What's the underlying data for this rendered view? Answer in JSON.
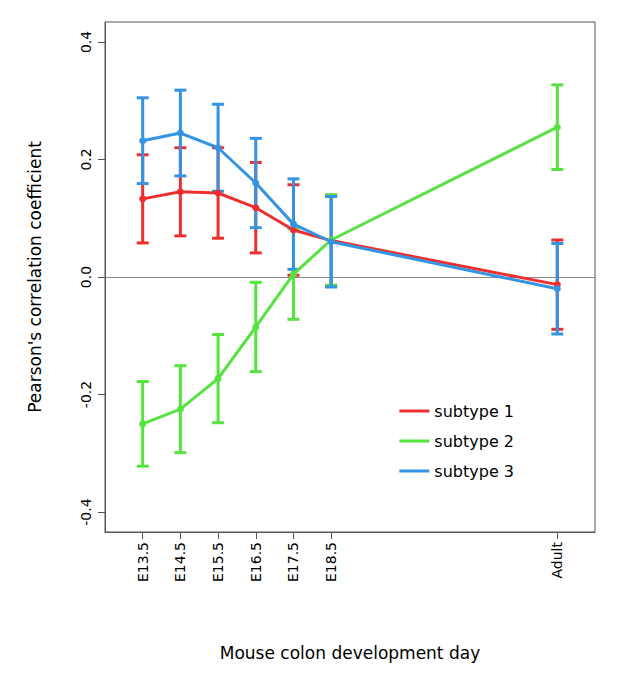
{
  "chart_data": {
    "type": "line",
    "x_label": "Mouse colon development day",
    "y_label": "Pearson's correlation coefficient",
    "categories": [
      null,
      "E13.5",
      "E14.5",
      "E15.5",
      "E16.5",
      "E17.5",
      "E18.5",
      null,
      null,
      null,
      null,
      null,
      "Adult",
      null
    ],
    "series": [
      {
        "name": "subtype 1",
        "color": "#ee2f2f",
        "values": [
          null,
          0.133,
          0.145,
          0.143,
          0.118,
          0.08,
          0.062,
          null,
          null,
          null,
          null,
          null,
          -0.013,
          null
        ],
        "errors": [
          null,
          0.075,
          0.075,
          0.077,
          0.077,
          0.077,
          0.077,
          null,
          null,
          null,
          null,
          null,
          0.076,
          null
        ]
      },
      {
        "name": "subtype 2",
        "color": "#55e33f",
        "values": [
          null,
          -0.25,
          -0.225,
          -0.173,
          -0.085,
          0.005,
          0.063,
          null,
          null,
          null,
          null,
          null,
          0.255,
          null
        ],
        "errors": [
          null,
          0.072,
          0.074,
          0.075,
          0.076,
          0.077,
          0.077,
          null,
          null,
          null,
          null,
          null,
          0.072,
          null
        ]
      },
      {
        "name": "subtype 3",
        "color": "#3394e4",
        "values": [
          null,
          0.232,
          0.245,
          0.22,
          0.16,
          0.09,
          0.06,
          null,
          null,
          null,
          null,
          null,
          -0.02,
          null
        ],
        "errors": [
          null,
          0.073,
          0.073,
          0.074,
          0.076,
          0.077,
          0.077,
          null,
          null,
          null,
          null,
          null,
          0.077,
          null
        ]
      }
    ],
    "ylim": [
      -0.434,
      0.434
    ],
    "yticks": [
      -0.4,
      -0.2,
      {
        "value": 0,
        "label": "0.0"
      },
      0.2,
      0.4
    ],
    "legend": "bottom-right",
    "marker": "circle",
    "grid": false
  }
}
